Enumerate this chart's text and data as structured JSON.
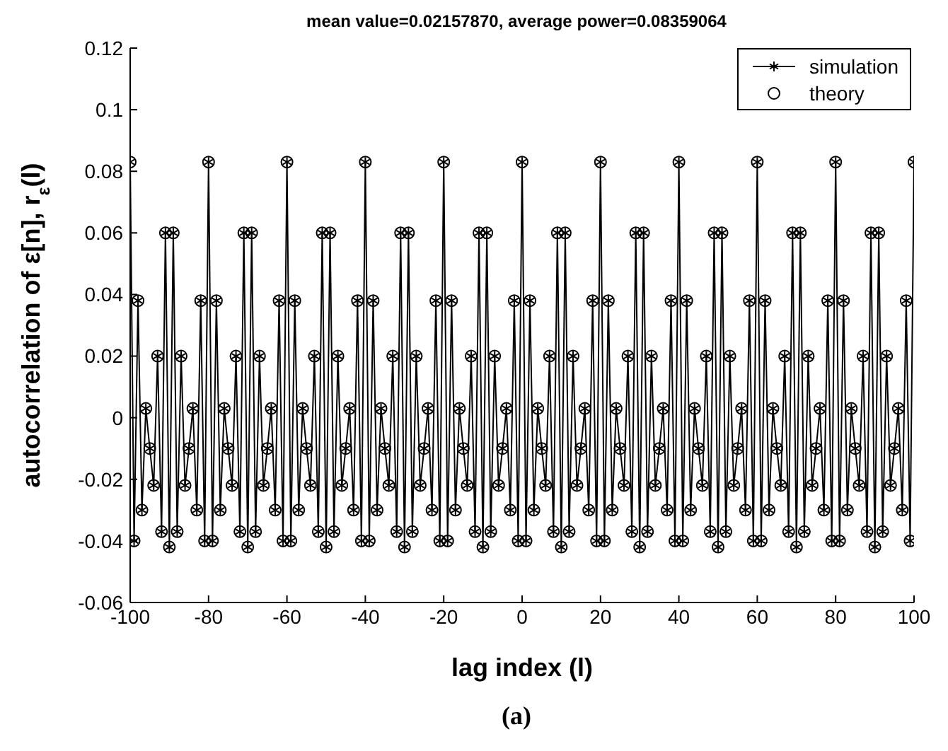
{
  "chart_data": {
    "type": "line",
    "title": "mean value=0.02157870, average power=0.08359064",
    "xlabel": "lag index (l)",
    "ylabel": "autocorrelation of ε[n], r$_{ε}$(l)",
    "annotations": [
      "(a)"
    ],
    "x": [
      -100,
      -99,
      -98,
      -97,
      -96,
      -95,
      -94,
      -93,
      -92,
      -91,
      -90,
      -89,
      -88,
      -87,
      -86,
      -85,
      -84,
      -83,
      -82,
      -81,
      -80,
      -79,
      -78,
      -77,
      -76,
      -75,
      -74,
      -73,
      -72,
      -71,
      -70,
      -69,
      -68,
      -67,
      -66,
      -65,
      -64,
      -63,
      -62,
      -61,
      -60,
      -59,
      -58,
      -57,
      -56,
      -55,
      -54,
      -53,
      -52,
      -51,
      -50,
      -49,
      -48,
      -47,
      -46,
      -45,
      -44,
      -43,
      -42,
      -41,
      -40,
      -39,
      -38,
      -37,
      -36,
      -35,
      -34,
      -33,
      -32,
      -31,
      -30,
      -29,
      -28,
      -27,
      -26,
      -25,
      -24,
      -23,
      -22,
      -21,
      -20,
      -19,
      -18,
      -17,
      -16,
      -15,
      -14,
      -13,
      -12,
      -11,
      -10,
      -9,
      -8,
      -7,
      -6,
      -5,
      -4,
      -3,
      -2,
      -1,
      0,
      1,
      2,
      3,
      4,
      5,
      6,
      7,
      8,
      9,
      10,
      11,
      12,
      13,
      14,
      15,
      16,
      17,
      18,
      19,
      20,
      21,
      22,
      23,
      24,
      25,
      26,
      27,
      28,
      29,
      30,
      31,
      32,
      33,
      34,
      35,
      36,
      37,
      38,
      39,
      40,
      41,
      42,
      43,
      44,
      45,
      46,
      47,
      48,
      49,
      50,
      51,
      52,
      53,
      54,
      55,
      56,
      57,
      58,
      59,
      60,
      61,
      62,
      63,
      64,
      65,
      66,
      67,
      68,
      69,
      70,
      71,
      72,
      73,
      74,
      75,
      76,
      77,
      78,
      79,
      80,
      81,
      82,
      83,
      84,
      85,
      86,
      87,
      88,
      89,
      90,
      91,
      92,
      93,
      94,
      95,
      96,
      97,
      98,
      99,
      100
    ],
    "series": [
      {
        "name": "simulation",
        "type": "line",
        "marker": "cross",
        "color": "#000000",
        "values": [
          0.083,
          -0.04,
          0.038,
          -0.03,
          0.003,
          -0.01,
          -0.022,
          0.02,
          -0.037,
          0.06,
          -0.042,
          0.06,
          -0.037,
          0.02,
          -0.022,
          -0.01,
          0.003,
          -0.03,
          0.038,
          -0.04,
          0.083,
          -0.04,
          0.038,
          -0.03,
          0.003,
          -0.01,
          -0.022,
          0.02,
          -0.037,
          0.06,
          -0.042,
          0.06,
          -0.037,
          0.02,
          -0.022,
          -0.01,
          0.003,
          -0.03,
          0.038,
          -0.04,
          0.083,
          -0.04,
          0.038,
          -0.03,
          0.003,
          -0.01,
          -0.022,
          0.02,
          -0.037,
          0.06,
          -0.042,
          0.06,
          -0.037,
          0.02,
          -0.022,
          -0.01,
          0.003,
          -0.03,
          0.038,
          -0.04,
          0.083,
          -0.04,
          0.038,
          -0.03,
          0.003,
          -0.01,
          -0.022,
          0.02,
          -0.037,
          0.06,
          -0.042,
          0.06,
          -0.037,
          0.02,
          -0.022,
          -0.01,
          0.003,
          -0.03,
          0.038,
          -0.04,
          0.083,
          -0.04,
          0.038,
          -0.03,
          0.003,
          -0.01,
          -0.022,
          0.02,
          -0.037,
          0.06,
          -0.042,
          0.06,
          -0.037,
          0.02,
          -0.022,
          -0.01,
          0.003,
          -0.03,
          0.038,
          -0.04,
          0.083,
          -0.04,
          0.038,
          -0.03,
          0.003,
          -0.01,
          -0.022,
          0.02,
          -0.037,
          0.06,
          -0.042,
          0.06,
          -0.037,
          0.02,
          -0.022,
          -0.01,
          0.003,
          -0.03,
          0.038,
          -0.04,
          0.083,
          -0.04,
          0.038,
          -0.03,
          0.003,
          -0.01,
          -0.022,
          0.02,
          -0.037,
          0.06,
          -0.042,
          0.06,
          -0.037,
          0.02,
          -0.022,
          -0.01,
          0.003,
          -0.03,
          0.038,
          -0.04,
          0.083,
          -0.04,
          0.038,
          -0.03,
          0.003,
          -0.01,
          -0.022,
          0.02,
          -0.037,
          0.06,
          -0.042,
          0.06,
          -0.037,
          0.02,
          -0.022,
          -0.01,
          0.003,
          -0.03,
          0.038,
          -0.04,
          0.083,
          -0.04,
          0.038,
          -0.03,
          0.003,
          -0.01,
          -0.022,
          0.02,
          -0.037,
          0.06,
          -0.042,
          0.06,
          -0.037,
          0.02,
          -0.022,
          -0.01,
          0.003,
          -0.03,
          0.038,
          -0.04,
          0.083,
          -0.04,
          0.038,
          -0.03,
          0.003,
          -0.01,
          -0.022,
          0.02,
          -0.037,
          0.06,
          -0.042,
          0.06,
          -0.037,
          0.02,
          -0.022,
          -0.01,
          0.003,
          -0.03,
          0.038,
          -0.04,
          0.083
        ]
      },
      {
        "name": "theory",
        "type": "scatter",
        "marker": "circle",
        "color": "#000000",
        "values": [
          0.083,
          -0.04,
          0.038,
          -0.03,
          0.003,
          -0.01,
          -0.022,
          0.02,
          -0.037,
          0.06,
          -0.042,
          0.06,
          -0.037,
          0.02,
          -0.022,
          -0.01,
          0.003,
          -0.03,
          0.038,
          -0.04,
          0.083,
          -0.04,
          0.038,
          -0.03,
          0.003,
          -0.01,
          -0.022,
          0.02,
          -0.037,
          0.06,
          -0.042,
          0.06,
          -0.037,
          0.02,
          -0.022,
          -0.01,
          0.003,
          -0.03,
          0.038,
          -0.04,
          0.083,
          -0.04,
          0.038,
          -0.03,
          0.003,
          -0.01,
          -0.022,
          0.02,
          -0.037,
          0.06,
          -0.042,
          0.06,
          -0.037,
          0.02,
          -0.022,
          -0.01,
          0.003,
          -0.03,
          0.038,
          -0.04,
          0.083,
          -0.04,
          0.038,
          -0.03,
          0.003,
          -0.01,
          -0.022,
          0.02,
          -0.037,
          0.06,
          -0.042,
          0.06,
          -0.037,
          0.02,
          -0.022,
          -0.01,
          0.003,
          -0.03,
          0.038,
          -0.04,
          0.083,
          -0.04,
          0.038,
          -0.03,
          0.003,
          -0.01,
          -0.022,
          0.02,
          -0.037,
          0.06,
          -0.042,
          0.06,
          -0.037,
          0.02,
          -0.022,
          -0.01,
          0.003,
          -0.03,
          0.038,
          -0.04,
          0.083,
          -0.04,
          0.038,
          -0.03,
          0.003,
          -0.01,
          -0.022,
          0.02,
          -0.037,
          0.06,
          -0.042,
          0.06,
          -0.037,
          0.02,
          -0.022,
          -0.01,
          0.003,
          -0.03,
          0.038,
          -0.04,
          0.083,
          -0.04,
          0.038,
          -0.03,
          0.003,
          -0.01,
          -0.022,
          0.02,
          -0.037,
          0.06,
          -0.042,
          0.06,
          -0.037,
          0.02,
          -0.022,
          -0.01,
          0.003,
          -0.03,
          0.038,
          -0.04,
          0.083,
          -0.04,
          0.038,
          -0.03,
          0.003,
          -0.01,
          -0.022,
          0.02,
          -0.037,
          0.06,
          -0.042,
          0.06,
          -0.037,
          0.02,
          -0.022,
          -0.01,
          0.003,
          -0.03,
          0.038,
          -0.04,
          0.083,
          -0.04,
          0.038,
          -0.03,
          0.003,
          -0.01,
          -0.022,
          0.02,
          -0.037,
          0.06,
          -0.042,
          0.06,
          -0.037,
          0.02,
          -0.022,
          -0.01,
          0.003,
          -0.03,
          0.038,
          -0.04,
          0.083,
          -0.04,
          0.038,
          -0.03,
          0.003,
          -0.01,
          -0.022,
          0.02,
          -0.037,
          0.06,
          -0.042,
          0.06,
          -0.037,
          0.02,
          -0.022,
          -0.01,
          0.003,
          -0.03,
          0.038,
          -0.04,
          0.083
        ]
      }
    ],
    "xlim": [
      -100,
      100
    ],
    "xticks": [
      -100,
      -80,
      -60,
      -40,
      -20,
      0,
      20,
      40,
      60,
      80,
      100
    ],
    "ylim": [
      -0.06,
      0.12
    ],
    "yticks": [
      -0.06,
      -0.04,
      -0.02,
      0,
      0.02,
      0.04,
      0.06,
      0.08,
      0.1,
      0.12
    ],
    "legend": "top right",
    "grid": false
  }
}
